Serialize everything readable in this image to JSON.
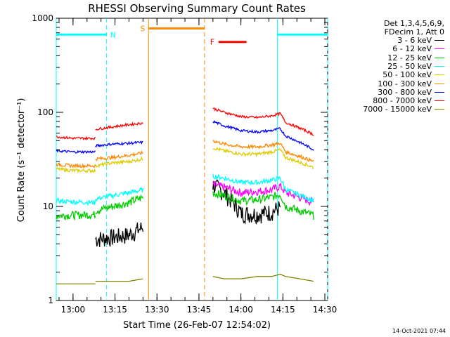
{
  "chart_data": {
    "type": "line",
    "title": "RHESSI Observing Summary Count Rates",
    "xlabel": "Start Time (26-Feb-07 12:54:02)",
    "ylabel": "Count Rate (s⁻¹ detector⁻¹)",
    "yscale": "log",
    "ylim": [
      1,
      1000
    ],
    "xlim": [
      0,
      97
    ],
    "x_ticks": [
      {
        "x": 6,
        "label": "13:00"
      },
      {
        "x": 21,
        "label": "13:15"
      },
      {
        "x": 36,
        "label": "13:30"
      },
      {
        "x": 51,
        "label": "13:45"
      },
      {
        "x": 66,
        "label": "14:00"
      },
      {
        "x": 81,
        "label": "14:15"
      },
      {
        "x": 96,
        "label": "14:30"
      }
    ],
    "y_ticks": [
      {
        "y": 1,
        "label": "1"
      },
      {
        "y": 10,
        "label": "10"
      },
      {
        "y": 100,
        "label": "100"
      },
      {
        "y": 1000,
        "label": "1000"
      }
    ],
    "legend_header": [
      "Det 1,3,4,5,6,9,",
      "FDecim 1, Att 0"
    ],
    "series": [
      {
        "name": "3 - 6 keV",
        "color": "#000000",
        "segments": [
          [
            [
              14,
              4.5
            ],
            [
              20,
              4.7
            ],
            [
              26,
              5.0
            ],
            [
              31,
              6.0
            ]
          ],
          [
            [
              56,
              17
            ],
            [
              60,
              14
            ],
            [
              66,
              8.5
            ],
            [
              72,
              8.3
            ],
            [
              77,
              8.8
            ],
            [
              80,
              9.8
            ]
          ]
        ]
      },
      {
        "name": "6 - 12 keV",
        "color": "#ff00ff",
        "segments": [
          [
            [
              56,
              17
            ],
            [
              60,
              16
            ],
            [
              66,
              14
            ],
            [
              72,
              14.5
            ],
            [
              77,
              15
            ],
            [
              80,
              16.5
            ],
            [
              82,
              14
            ],
            [
              92,
              11
            ]
          ]
        ]
      },
      {
        "name": "12 - 25 keV",
        "color": "#00cc00",
        "segments": [
          [
            [
              0,
              8
            ],
            [
              6,
              8.1
            ],
            [
              14,
              8.2
            ]
          ],
          [
            [
              14,
              9
            ],
            [
              20,
              10
            ],
            [
              26,
              11
            ],
            [
              31,
              12.5
            ]
          ],
          [
            [
              56,
              14
            ],
            [
              60,
              13
            ],
            [
              66,
              11.5
            ],
            [
              72,
              11.8
            ],
            [
              77,
              12.5
            ],
            [
              80,
              13.5
            ],
            [
              82,
              10
            ],
            [
              92,
              8
            ]
          ]
        ]
      },
      {
        "name": "25 - 50 keV",
        "color": "#00ffff",
        "segments": [
          [
            [
              0,
              11.5
            ],
            [
              6,
              11.2
            ],
            [
              14,
              11
            ]
          ],
          [
            [
              14,
              12
            ],
            [
              20,
              13
            ],
            [
              26,
              14
            ],
            [
              31,
              15
            ]
          ],
          [
            [
              56,
              21
            ],
            [
              60,
              20
            ],
            [
              66,
              18
            ],
            [
              72,
              18
            ],
            [
              77,
              19
            ],
            [
              80,
              20
            ],
            [
              82,
              15
            ],
            [
              92,
              11.5
            ]
          ]
        ]
      },
      {
        "name": "50 - 100 keV",
        "color": "#ddcc00",
        "segments": [
          [
            [
              0,
              25
            ],
            [
              6,
              24
            ],
            [
              14,
              24
            ]
          ],
          [
            [
              14,
              27
            ],
            [
              20,
              29
            ],
            [
              26,
              30
            ],
            [
              31,
              32
            ]
          ],
          [
            [
              56,
              42
            ],
            [
              60,
              39
            ],
            [
              66,
              36
            ],
            [
              72,
              36
            ],
            [
              77,
              38
            ],
            [
              80,
              40
            ],
            [
              82,
              33
            ],
            [
              92,
              26
            ]
          ]
        ]
      },
      {
        "name": "100 - 300 keV",
        "color": "#ff8800",
        "segments": [
          [
            [
              0,
              28
            ],
            [
              6,
              27
            ],
            [
              14,
              27
            ]
          ],
          [
            [
              14,
              32
            ],
            [
              20,
              33
            ],
            [
              26,
              35
            ],
            [
              31,
              37
            ]
          ],
          [
            [
              56,
              50
            ],
            [
              60,
              46
            ],
            [
              66,
              43
            ],
            [
              72,
              43
            ],
            [
              77,
              45
            ],
            [
              80,
              47
            ],
            [
              82,
              38
            ],
            [
              92,
              30
            ]
          ]
        ]
      },
      {
        "name": "300 - 800 keV",
        "color": "#0000ff",
        "segments": [
          [
            [
              0,
              39
            ],
            [
              6,
              38
            ],
            [
              14,
              38
            ]
          ],
          [
            [
              14,
              44
            ],
            [
              20,
              46
            ],
            [
              26,
              47
            ],
            [
              31,
              48
            ]
          ],
          [
            [
              56,
              80
            ],
            [
              60,
              72
            ],
            [
              66,
              64
            ],
            [
              72,
              62
            ],
            [
              77,
              64
            ],
            [
              80,
              67
            ],
            [
              82,
              56
            ],
            [
              92,
              40
            ]
          ]
        ]
      },
      {
        "name": "800 - 7000 keV",
        "color": "#ff0000",
        "segments": [
          [
            [
              0,
              55
            ],
            [
              6,
              53
            ],
            [
              14,
              53
            ]
          ],
          [
            [
              14,
              66
            ],
            [
              20,
              70
            ],
            [
              26,
              74
            ],
            [
              31,
              77
            ]
          ],
          [
            [
              56,
              110
            ],
            [
              60,
              100
            ],
            [
              66,
              90
            ],
            [
              72,
              88
            ],
            [
              77,
              92
            ],
            [
              80,
              97
            ],
            [
              82,
              78
            ],
            [
              92,
              58
            ]
          ]
        ]
      },
      {
        "name": "7000 - 15000 keV",
        "color": "#808000",
        "segments": [
          [
            [
              0,
              1.5
            ],
            [
              6,
              1.5
            ],
            [
              14,
              1.5
            ]
          ],
          [
            [
              14,
              1.6
            ],
            [
              20,
              1.6
            ],
            [
              26,
              1.6
            ],
            [
              31,
              1.7
            ]
          ],
          [
            [
              56,
              1.8
            ],
            [
              60,
              1.7
            ],
            [
              66,
              1.7
            ],
            [
              72,
              1.8
            ],
            [
              77,
              1.8
            ],
            [
              80,
              1.9
            ],
            [
              82,
              1.8
            ],
            [
              92,
              1.6
            ]
          ]
        ]
      }
    ],
    "annotations": [
      {
        "label": "N",
        "color": "#00ffff",
        "x_start": 0,
        "x_end": 18,
        "y": 670
      },
      {
        "label": "N",
        "color": "#00ffff",
        "x_start": 79,
        "x_end": 97,
        "y": 670
      },
      {
        "label": "S",
        "color": "#ff8800",
        "x_start": 33,
        "x_end": 53,
        "y": 780
      },
      {
        "label": "F",
        "color": "#ff0000",
        "x_start": 58,
        "x_end": 68,
        "y": 560
      }
    ],
    "vertical_markers": [
      {
        "x": 0,
        "color": "#00ffff",
        "style": "solid"
      },
      {
        "x": 18,
        "color": "#00ffff",
        "style": "dashed"
      },
      {
        "x": 33,
        "color": "#ff8800",
        "style": "solid"
      },
      {
        "x": 53,
        "color": "#ff8800",
        "style": "dashed"
      },
      {
        "x": 79,
        "color": "#00ffff",
        "style": "solid"
      },
      {
        "x": 97,
        "color": "#00ffff",
        "style": "dashed"
      }
    ]
  },
  "footer_timestamp": "14-Oct-2021 07:44"
}
